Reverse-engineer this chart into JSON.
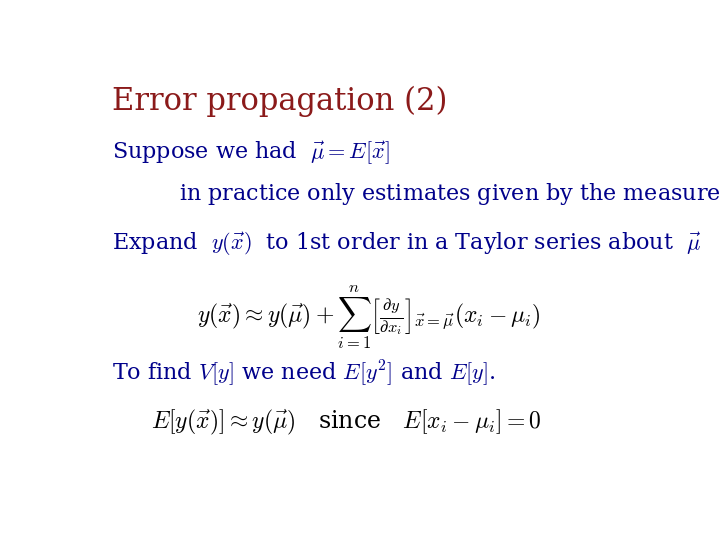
{
  "title": "Error propagation (2)",
  "title_color": "#8B1A1A",
  "text_color": "#00008B",
  "bg_color": "#FFFFFF",
  "title_fontsize": 22,
  "body_fontsize": 16,
  "math_fontsize": 17,
  "figsize": [
    7.2,
    5.4
  ],
  "dpi": 100
}
